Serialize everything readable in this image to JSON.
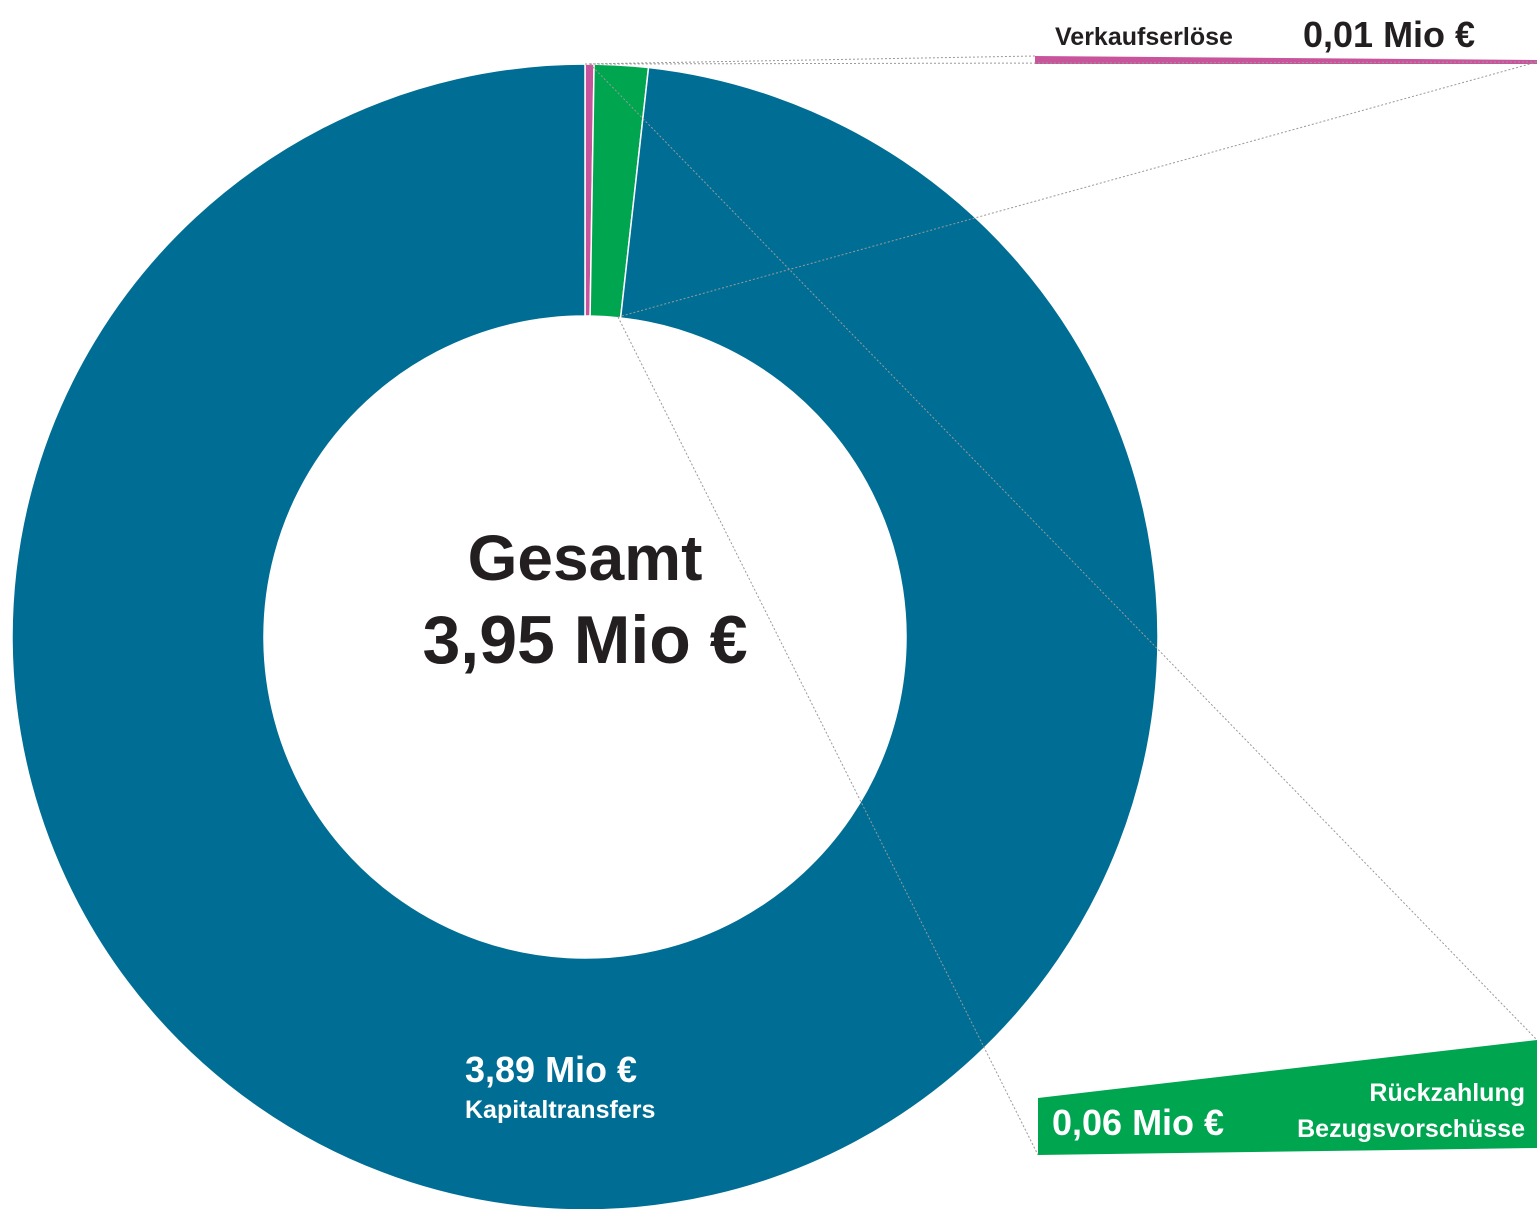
{
  "chart_data": {
    "type": "donut",
    "center_title": "Gesamt",
    "center_label": "3,95 Mio €",
    "categories": [
      "Verkaufserlöse",
      "Rückzahlung Bezugsvorschüsse",
      "Kapitaltransfers"
    ],
    "values": [
      0.01,
      0.06,
      3.89
    ],
    "value_labels": [
      "0,01 Mio €",
      "0,06 Mio €",
      "3,89 Mio €"
    ],
    "colors": [
      "#c8559b",
      "#00a550",
      "#006e94"
    ]
  }
}
